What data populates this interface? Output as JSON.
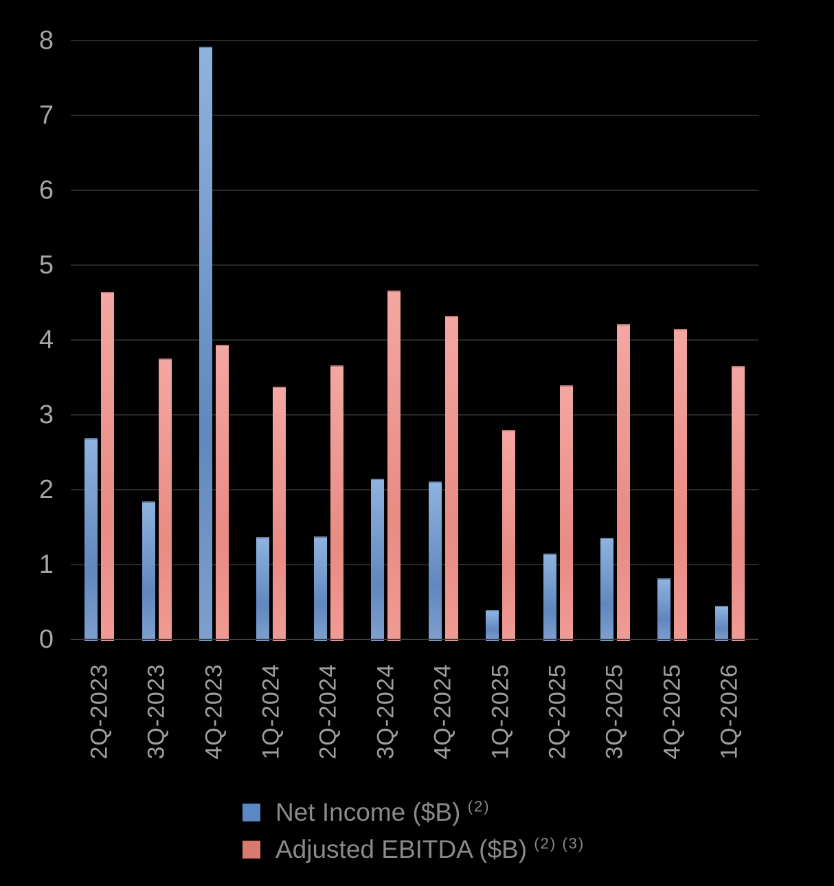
{
  "chart_data": {
    "type": "bar",
    "title": "",
    "xlabel": "",
    "ylabel": "",
    "background_color": "#000000",
    "grid": "horizontal",
    "gridline_color": "#292929",
    "axis_line_color": "#3E3E3E",
    "tick_label_color": "#A6A6A6",
    "legend_position": "bottom",
    "legend_text_color": "#8A8A8A",
    "ylim": [
      0,
      8
    ],
    "yticks": [
      "0",
      "1",
      "2",
      "3",
      "4",
      "5",
      "6",
      "7",
      "8"
    ],
    "categories": [
      "2Q-2023",
      "3Q-2023",
      "4Q-2023",
      "1Q-2024",
      "2Q-2024",
      "3Q-2024",
      "4Q-2024",
      "1Q-2025",
      "2Q-2025",
      "3Q-2025",
      "4Q-2025",
      "1Q-2026"
    ],
    "series": [
      {
        "key": "net-income",
        "name": "Net Income ($B)",
        "superscript": "(2)",
        "color": "#5B87C4",
        "values": [
          2.69,
          1.84,
          7.92,
          1.37,
          1.38,
          2.15,
          2.11,
          0.39,
          1.15,
          1.36,
          0.82,
          0.45
        ]
      },
      {
        "key": "adjusted-ebitda",
        "name": "Adjusted EBITDA ($B)",
        "superscript": "(2) (3)",
        "color": "#D97A71",
        "values": [
          4.64,
          3.75,
          3.94,
          3.38,
          3.66,
          4.66,
          4.32,
          2.8,
          3.39,
          4.21,
          4.15,
          3.65
        ]
      }
    ]
  }
}
